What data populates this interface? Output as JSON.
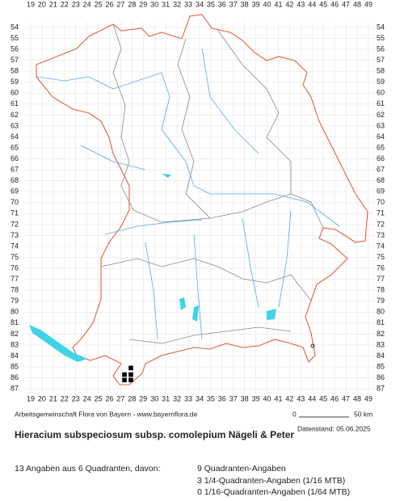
{
  "map": {
    "grid_columns": [
      19,
      20,
      21,
      22,
      23,
      24,
      25,
      26,
      27,
      28,
      29,
      30,
      31,
      32,
      33,
      34,
      35,
      36,
      37,
      38,
      39,
      40,
      41,
      42,
      43,
      44,
      45,
      46,
      47,
      48,
      49
    ],
    "grid_rows": [
      54,
      55,
      56,
      57,
      58,
      59,
      60,
      61,
      62,
      63,
      64,
      65,
      66,
      67,
      68,
      69,
      70,
      71,
      72,
      73,
      74,
      75,
      76,
      77,
      78,
      79,
      80,
      81,
      82,
      83,
      84,
      85,
      86,
      87
    ],
    "occurrences": [
      {
        "x": 27.9,
        "y": 85.1
      },
      {
        "x": 27.33,
        "y": 85.7
      },
      {
        "x": 27.9,
        "y": 85.7
      },
      {
        "x": 27.33,
        "y": 86.2
      },
      {
        "x": 27.9,
        "y": 86.2
      }
    ]
  },
  "footer": {
    "credit": "Arbeitsgemeinschaft Flora von Bayern - www.bayernflora.de",
    "scale_start": "0",
    "scale_end": "50 km",
    "date": "Datenstand: 05.06.2025"
  },
  "title": "Hieracium subspeciosum subsp. comolepium Nägeli & Peter",
  "summary": {
    "total": "13 Angaben aus 6 Quadranten, davon:",
    "lines": [
      "9 Quadranten-Angaben",
      "3 1/4-Quadranten-Angaben (1/16 MTB)",
      "0 1/16-Quadranten-Angaben (1/64 MTB)"
    ]
  }
}
